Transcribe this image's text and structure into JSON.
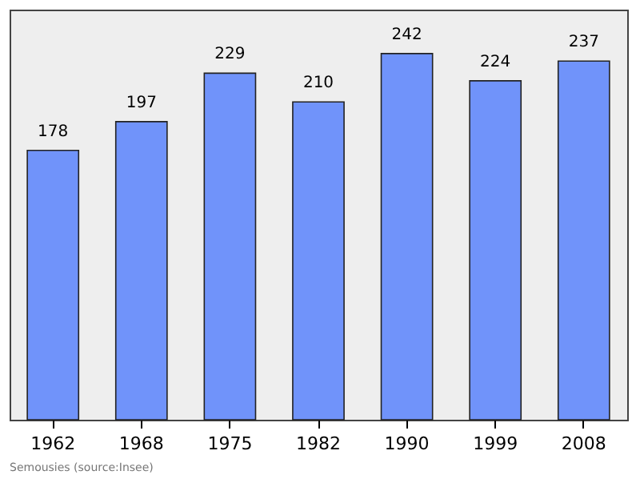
{
  "chart_data": {
    "type": "bar",
    "categories": [
      "1962",
      "1968",
      "1975",
      "1982",
      "1990",
      "1999",
      "2008"
    ],
    "values": [
      178,
      197,
      229,
      210,
      242,
      224,
      237
    ],
    "color": "#7093fa",
    "data_labels": true,
    "grid": false,
    "annotations": [
      "Semousies    (source:Insee)"
    ]
  }
}
